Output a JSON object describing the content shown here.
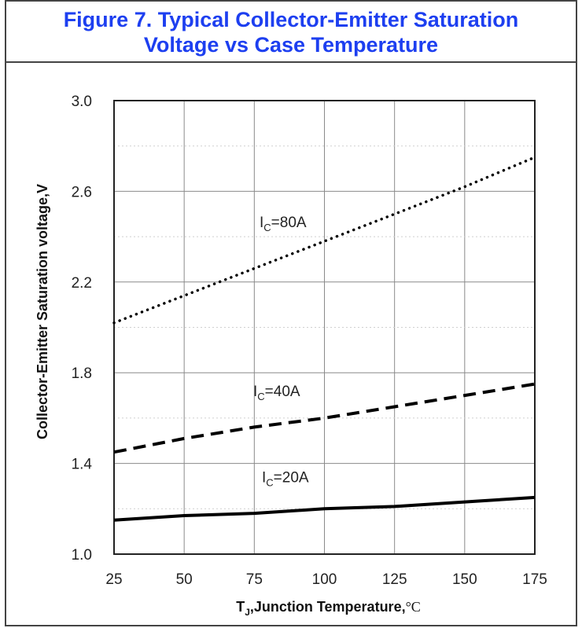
{
  "chart_data": {
    "type": "line",
    "title_lines": [
      "Figure 7. Typical Collector-Emitter Saturation",
      "Voltage vs Case Temperature"
    ],
    "xlabel": "TJ,Junction Temperature,°C",
    "ylabel": "Collector-Emitter Saturation voltage,V",
    "x": [
      25,
      50,
      75,
      100,
      125,
      150,
      175
    ],
    "xlim": [
      25,
      175
    ],
    "ylim": [
      1.0,
      3.0
    ],
    "xticks": [
      "25",
      "50",
      "75",
      "100",
      "125",
      "150",
      "175"
    ],
    "yticks": [
      "1.0",
      "1.4",
      "1.8",
      "2.2",
      "2.6",
      "3.0"
    ],
    "grid": true,
    "series": [
      {
        "name": "IC=80A",
        "label_main": "I",
        "label_sub": "C",
        "label_rest": "=80A",
        "style": "dotted",
        "color": "#000000",
        "values": [
          2.02,
          2.14,
          2.26,
          2.38,
          2.5,
          2.62,
          2.75
        ]
      },
      {
        "name": "IC=40A",
        "label_main": "I",
        "label_sub": "C",
        "label_rest": "=40A",
        "style": "dashed",
        "color": "#000000",
        "values": [
          1.45,
          1.51,
          1.56,
          1.6,
          1.65,
          1.7,
          1.75
        ]
      },
      {
        "name": "IC=20A",
        "label_main": "I",
        "label_sub": "C",
        "label_rest": "=20A",
        "style": "solid",
        "color": "#000000",
        "values": [
          1.15,
          1.17,
          1.18,
          1.2,
          1.21,
          1.23,
          1.25
        ]
      }
    ]
  }
}
